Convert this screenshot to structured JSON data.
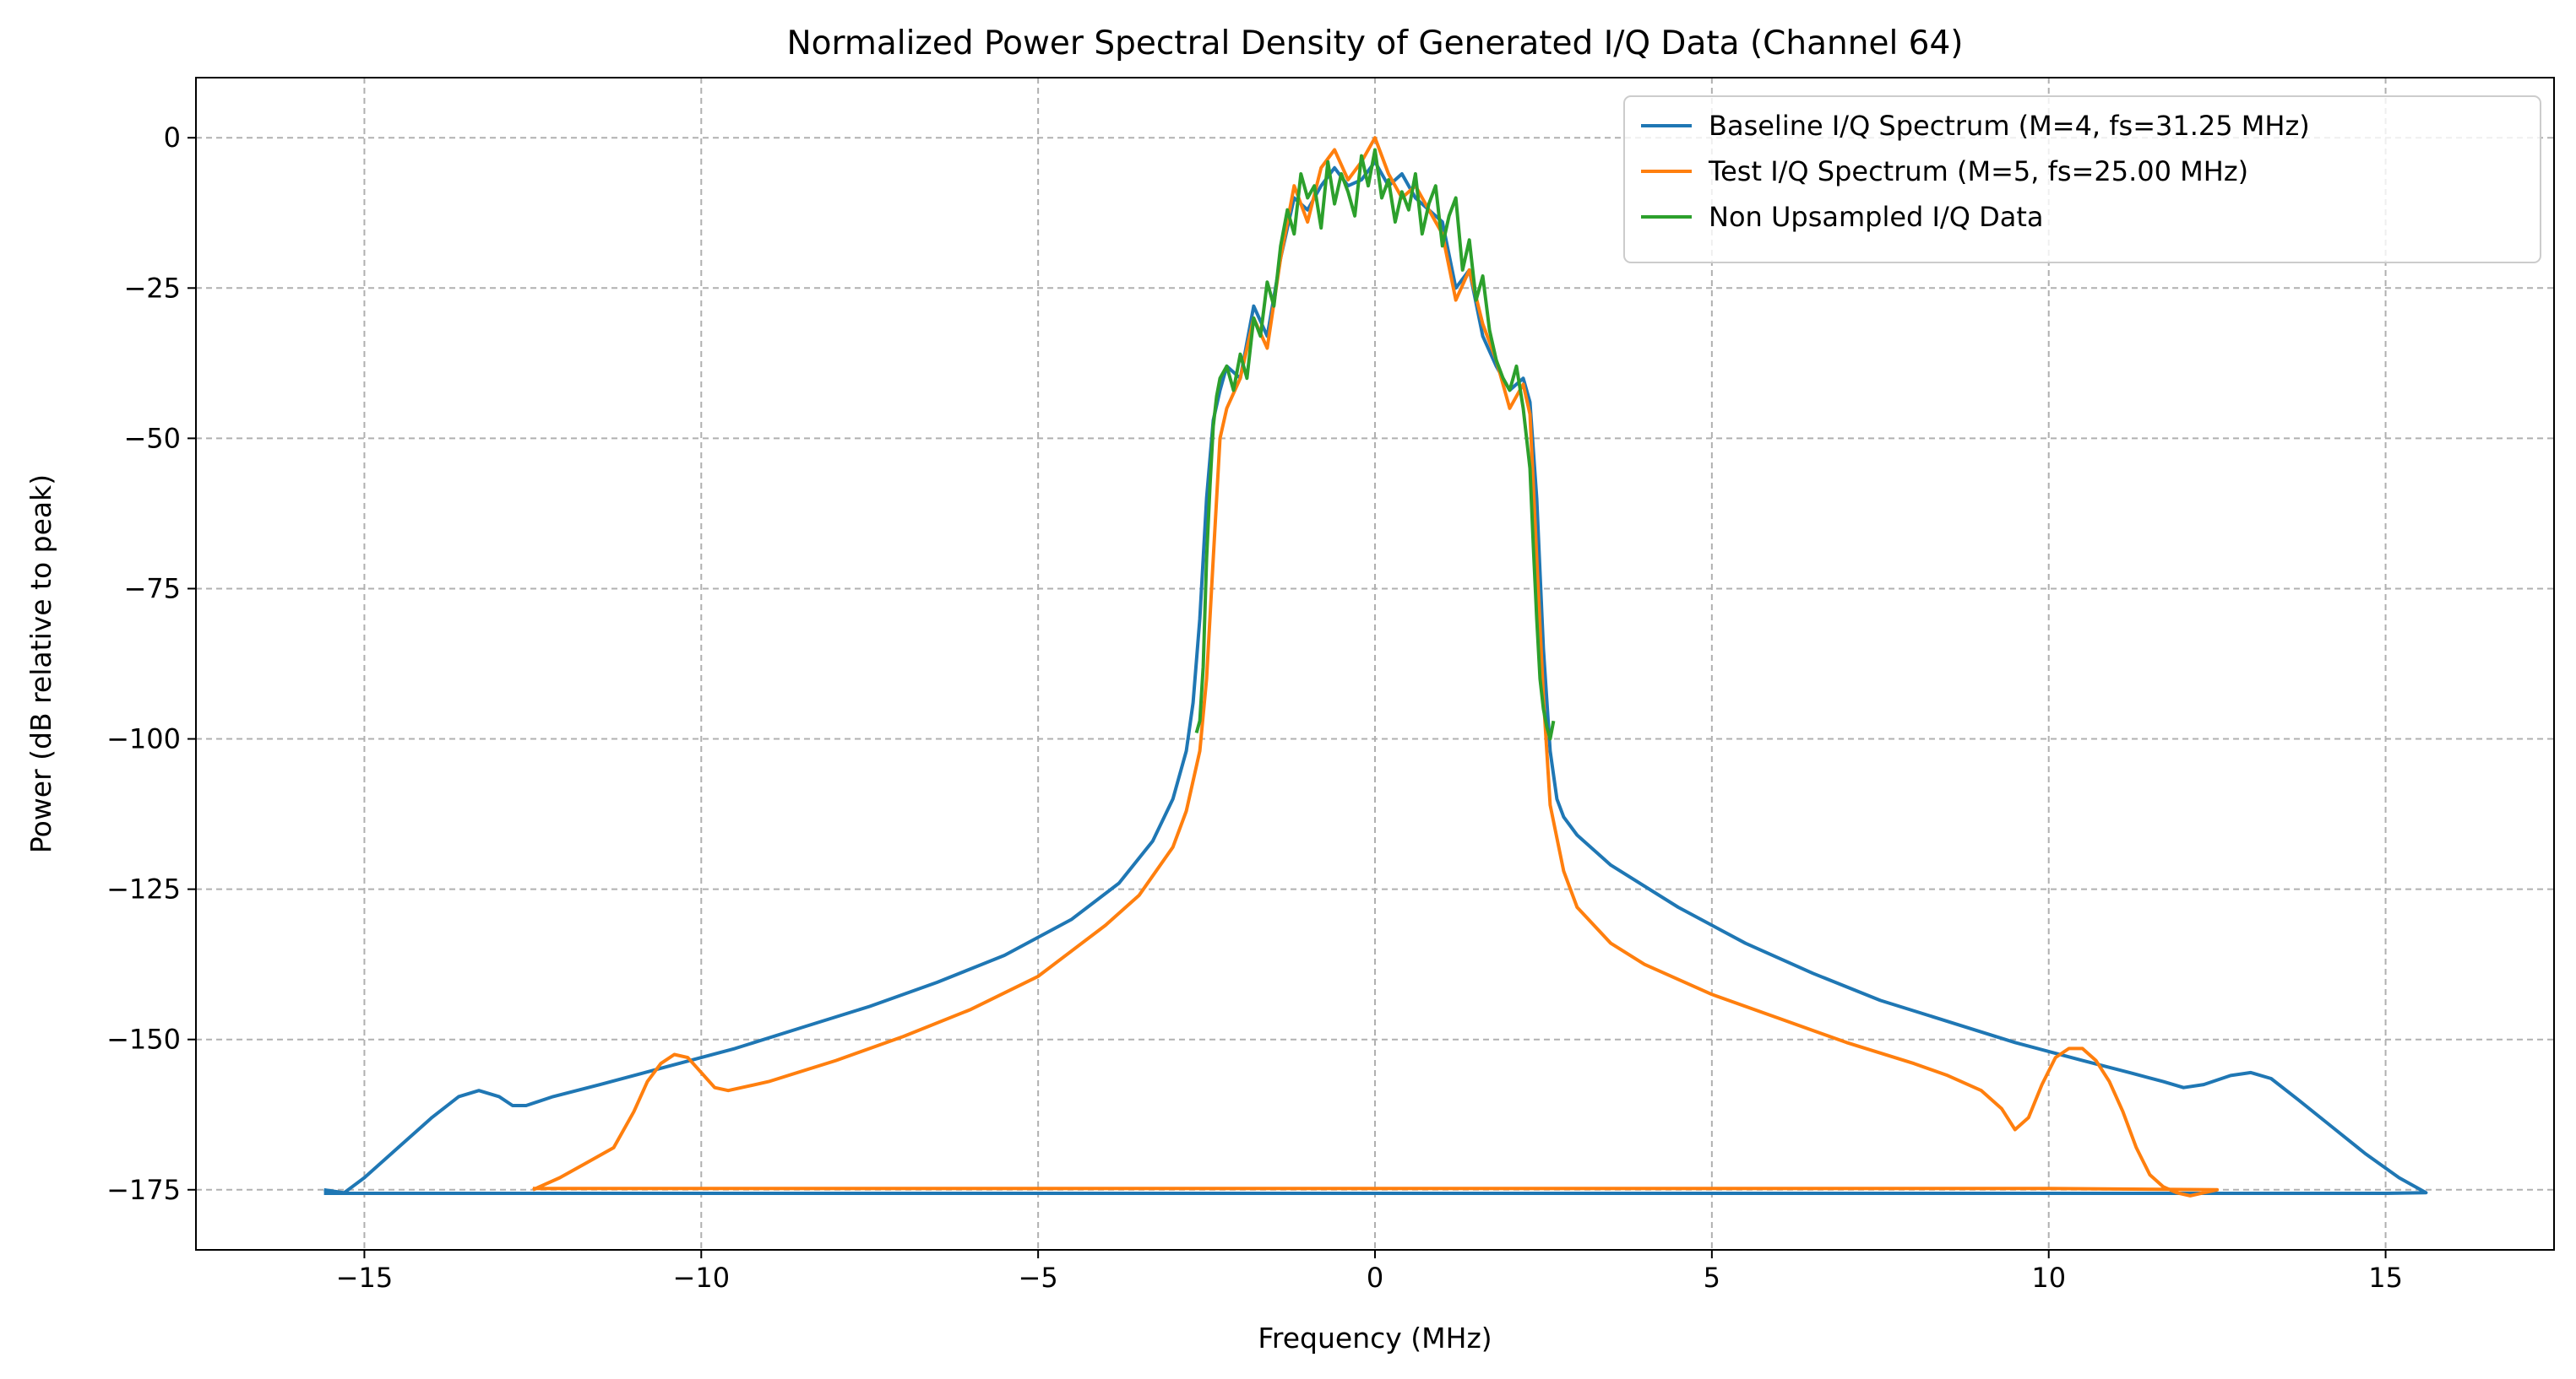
{
  "chart_data": {
    "type": "line",
    "title": "Normalized Power Spectral Density of Generated I/Q Data (Channel 64)",
    "xlabel": "Frequency (MHz)",
    "ylabel": "Power (dB relative to peak)",
    "xlim": [
      -17.5,
      17.5
    ],
    "ylim": [
      -185,
      10
    ],
    "xticks": [
      -15,
      -10,
      -5,
      0,
      5,
      10,
      15
    ],
    "yticks": [
      0,
      -25,
      -50,
      -75,
      -100,
      -125,
      -150,
      -175
    ],
    "grid": true,
    "legend_position": "top-right",
    "series": [
      {
        "name": "Baseline I/Q Spectrum (M=4, fs=31.25 MHz)",
        "color": "#1f77b4",
        "x": [
          -15.6,
          -15.3,
          -15.0,
          -14.5,
          -14.0,
          -13.6,
          -13.3,
          -13.0,
          -12.8,
          -12.6,
          -12.2,
          -11.5,
          -10.5,
          -9.5,
          -8.5,
          -7.5,
          -6.5,
          -5.5,
          -4.5,
          -3.8,
          -3.3,
          -3.0,
          -2.8,
          -2.7,
          -2.6,
          -2.5,
          -2.4,
          -2.3,
          -2.2,
          -2.0,
          -1.8,
          -1.6,
          -1.4,
          -1.2,
          -1.0,
          -0.8,
          -0.6,
          -0.4,
          -0.2,
          0.0,
          0.2,
          0.4,
          0.6,
          0.8,
          1.0,
          1.2,
          1.4,
          1.6,
          1.8,
          2.0,
          2.2,
          2.3,
          2.4,
          2.5,
          2.6,
          2.7,
          2.8,
          3.0,
          3.5,
          4.5,
          5.5,
          6.5,
          7.5,
          8.5,
          9.5,
          10.5,
          11.2,
          11.7,
          12.0,
          12.3,
          12.7,
          13.0,
          13.3,
          13.7,
          14.2,
          14.7,
          15.2,
          15.6,
          15.0,
          13.0,
          11.0,
          9.0,
          7.0,
          5.0,
          3.0,
          1.0,
          -1.0,
          -3.0,
          -5.0,
          -7.0,
          -9.0,
          -11.0,
          -13.0,
          -15.0,
          -15.6
        ],
        "y": [
          -175,
          -175.5,
          -173,
          -168,
          -163,
          -159.5,
          -158.5,
          -159.5,
          -161,
          -161,
          -159.5,
          -157.5,
          -154.5,
          -151.5,
          -148,
          -144.5,
          -140.5,
          -136,
          -130,
          -124,
          -117,
          -110,
          -102,
          -94,
          -80,
          -60,
          -47,
          -42,
          -38,
          -40,
          -28,
          -33,
          -20,
          -10,
          -12,
          -8,
          -5,
          -8,
          -7,
          -4,
          -8,
          -6,
          -10,
          -12,
          -14,
          -25,
          -22,
          -33,
          -38,
          -42,
          -40,
          -44,
          -60,
          -85,
          -102,
          -110,
          -113,
          -116,
          -121,
          -128,
          -134,
          -139,
          -143.5,
          -147,
          -150.5,
          -153.5,
          -155.5,
          -157,
          -158,
          -157.5,
          -156,
          -155.5,
          -156.5,
          -160,
          -164.5,
          -169,
          -173,
          -175.5,
          -175.6,
          -175.6,
          -175.6,
          -175.6,
          -175.6,
          -175.6,
          -175.6,
          -175.6,
          -175.6,
          -175.6,
          -175.6,
          -175.6,
          -175.6,
          -175.6,
          -175.6,
          -175.6,
          -175.6
        ]
      },
      {
        "name": "Test I/Q Spectrum (M=5, fs=25.00 MHz)",
        "color": "#ff7f0e",
        "x": [
          -12.5,
          -12.1,
          -11.7,
          -11.3,
          -11.0,
          -10.8,
          -10.6,
          -10.4,
          -10.2,
          -10.0,
          -9.8,
          -9.6,
          -9.4,
          -9.0,
          -8.0,
          -7.0,
          -6.0,
          -5.0,
          -4.0,
          -3.5,
          -3.0,
          -2.8,
          -2.6,
          -2.5,
          -2.4,
          -2.3,
          -2.2,
          -2.0,
          -1.8,
          -1.6,
          -1.4,
          -1.2,
          -1.0,
          -0.8,
          -0.6,
          -0.4,
          -0.2,
          0.0,
          0.2,
          0.4,
          0.6,
          0.8,
          1.0,
          1.2,
          1.4,
          1.6,
          1.8,
          2.0,
          2.2,
          2.3,
          2.4,
          2.5,
          2.6,
          2.8,
          3.0,
          3.5,
          4.0,
          5.0,
          6.0,
          7.0,
          8.0,
          8.5,
          9.0,
          9.3,
          9.5,
          9.7,
          9.9,
          10.1,
          10.3,
          10.5,
          10.7,
          10.9,
          11.1,
          11.3,
          11.5,
          11.7,
          11.9,
          12.1,
          12.3,
          12.5,
          10.0,
          5.0,
          0.0,
          -5.0,
          -10.0,
          -12.5
        ],
        "y": [
          -175,
          -173,
          -170.5,
          -168,
          -162,
          -157,
          -154,
          -152.5,
          -153,
          -155.5,
          -158,
          -158.5,
          -158,
          -157,
          -153.5,
          -149.5,
          -145,
          -139.5,
          -131,
          -126,
          -118,
          -112,
          -102,
          -90,
          -70,
          -50,
          -45,
          -40,
          -30,
          -35,
          -20,
          -8,
          -14,
          -5,
          -2,
          -7,
          -4,
          0,
          -6,
          -10,
          -8,
          -12,
          -16,
          -27,
          -22,
          -31,
          -37,
          -45,
          -41,
          -46,
          -70,
          -93,
          -111,
          -122,
          -128,
          -134,
          -137.5,
          -142.5,
          -146.5,
          -150.5,
          -154,
          -156,
          -158.5,
          -161.5,
          -165,
          -163,
          -157.5,
          -153,
          -151.5,
          -151.5,
          -153.5,
          -157,
          -162,
          -168,
          -172.5,
          -174.5,
          -175.5,
          -176,
          -175.5,
          -175,
          -174.8,
          -174.8,
          -174.8,
          -174.8,
          -174.8,
          -174.8
        ]
      },
      {
        "name": "Non Upsampled I/Q Data",
        "color": "#2ca02c",
        "x": [
          -2.65,
          -2.6,
          -2.55,
          -2.5,
          -2.45,
          -2.4,
          -2.35,
          -2.3,
          -2.2,
          -2.1,
          -2.0,
          -1.9,
          -1.8,
          -1.7,
          -1.6,
          -1.5,
          -1.4,
          -1.3,
          -1.2,
          -1.1,
          -1.0,
          -0.9,
          -0.8,
          -0.7,
          -0.6,
          -0.5,
          -0.4,
          -0.3,
          -0.2,
          -0.1,
          0.0,
          0.1,
          0.2,
          0.3,
          0.4,
          0.5,
          0.6,
          0.7,
          0.8,
          0.9,
          1.0,
          1.1,
          1.2,
          1.3,
          1.4,
          1.5,
          1.6,
          1.7,
          1.8,
          1.9,
          2.0,
          2.1,
          2.2,
          2.3,
          2.35,
          2.4,
          2.45,
          2.5,
          2.55,
          2.6,
          2.65
        ],
        "y": [
          -99,
          -97,
          -88,
          -70,
          -58,
          -48,
          -43,
          -40,
          -38,
          -42,
          -36,
          -40,
          -30,
          -33,
          -24,
          -28,
          -18,
          -12,
          -16,
          -6,
          -10,
          -8,
          -15,
          -4,
          -11,
          -6,
          -9,
          -13,
          -3,
          -8,
          -2,
          -10,
          -7,
          -14,
          -9,
          -12,
          -6,
          -16,
          -11,
          -8,
          -18,
          -13,
          -10,
          -22,
          -17,
          -27,
          -23,
          -32,
          -37,
          -40,
          -42,
          -38,
          -45,
          -55,
          -68,
          -80,
          -90,
          -95,
          -98,
          -100,
          -97
        ]
      }
    ]
  }
}
